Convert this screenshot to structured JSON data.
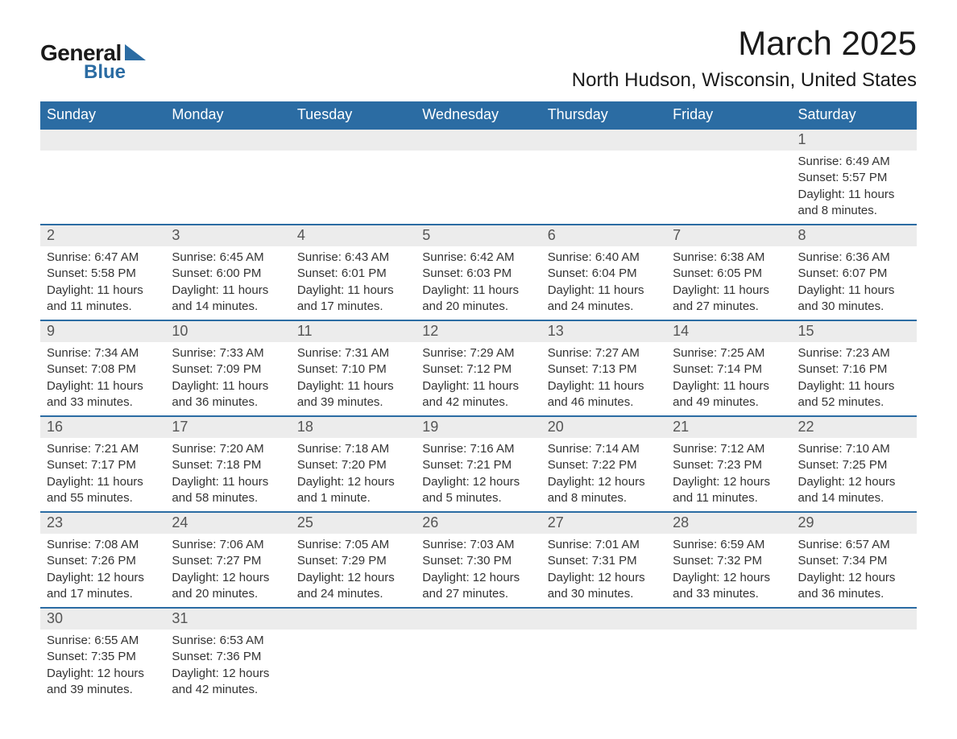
{
  "logo": {
    "text_general": "General",
    "text_blue": "Blue",
    "triangle_color": "#2b6ca3"
  },
  "header": {
    "month_title": "March 2025",
    "location": "North Hudson, Wisconsin, United States"
  },
  "colors": {
    "header_bg": "#2b6ca3",
    "header_text": "#ffffff",
    "daynum_bg": "#ececec",
    "daynum_text": "#555555",
    "body_text": "#333333",
    "row_border": "#2b6ca3",
    "page_bg": "#ffffff"
  },
  "typography": {
    "month_title_fontsize": 42,
    "location_fontsize": 24,
    "dayheader_fontsize": 18,
    "daynum_fontsize": 18,
    "body_fontsize": 15
  },
  "day_headers": [
    "Sunday",
    "Monday",
    "Tuesday",
    "Wednesday",
    "Thursday",
    "Friday",
    "Saturday"
  ],
  "weeks": [
    [
      {
        "num": "",
        "sunrise": "",
        "sunset": "",
        "daylight": ""
      },
      {
        "num": "",
        "sunrise": "",
        "sunset": "",
        "daylight": ""
      },
      {
        "num": "",
        "sunrise": "",
        "sunset": "",
        "daylight": ""
      },
      {
        "num": "",
        "sunrise": "",
        "sunset": "",
        "daylight": ""
      },
      {
        "num": "",
        "sunrise": "",
        "sunset": "",
        "daylight": ""
      },
      {
        "num": "",
        "sunrise": "",
        "sunset": "",
        "daylight": ""
      },
      {
        "num": "1",
        "sunrise": "Sunrise: 6:49 AM",
        "sunset": "Sunset: 5:57 PM",
        "daylight": "Daylight: 11 hours and 8 minutes."
      }
    ],
    [
      {
        "num": "2",
        "sunrise": "Sunrise: 6:47 AM",
        "sunset": "Sunset: 5:58 PM",
        "daylight": "Daylight: 11 hours and 11 minutes."
      },
      {
        "num": "3",
        "sunrise": "Sunrise: 6:45 AM",
        "sunset": "Sunset: 6:00 PM",
        "daylight": "Daylight: 11 hours and 14 minutes."
      },
      {
        "num": "4",
        "sunrise": "Sunrise: 6:43 AM",
        "sunset": "Sunset: 6:01 PM",
        "daylight": "Daylight: 11 hours and 17 minutes."
      },
      {
        "num": "5",
        "sunrise": "Sunrise: 6:42 AM",
        "sunset": "Sunset: 6:03 PM",
        "daylight": "Daylight: 11 hours and 20 minutes."
      },
      {
        "num": "6",
        "sunrise": "Sunrise: 6:40 AM",
        "sunset": "Sunset: 6:04 PM",
        "daylight": "Daylight: 11 hours and 24 minutes."
      },
      {
        "num": "7",
        "sunrise": "Sunrise: 6:38 AM",
        "sunset": "Sunset: 6:05 PM",
        "daylight": "Daylight: 11 hours and 27 minutes."
      },
      {
        "num": "8",
        "sunrise": "Sunrise: 6:36 AM",
        "sunset": "Sunset: 6:07 PM",
        "daylight": "Daylight: 11 hours and 30 minutes."
      }
    ],
    [
      {
        "num": "9",
        "sunrise": "Sunrise: 7:34 AM",
        "sunset": "Sunset: 7:08 PM",
        "daylight": "Daylight: 11 hours and 33 minutes."
      },
      {
        "num": "10",
        "sunrise": "Sunrise: 7:33 AM",
        "sunset": "Sunset: 7:09 PM",
        "daylight": "Daylight: 11 hours and 36 minutes."
      },
      {
        "num": "11",
        "sunrise": "Sunrise: 7:31 AM",
        "sunset": "Sunset: 7:10 PM",
        "daylight": "Daylight: 11 hours and 39 minutes."
      },
      {
        "num": "12",
        "sunrise": "Sunrise: 7:29 AM",
        "sunset": "Sunset: 7:12 PM",
        "daylight": "Daylight: 11 hours and 42 minutes."
      },
      {
        "num": "13",
        "sunrise": "Sunrise: 7:27 AM",
        "sunset": "Sunset: 7:13 PM",
        "daylight": "Daylight: 11 hours and 46 minutes."
      },
      {
        "num": "14",
        "sunrise": "Sunrise: 7:25 AM",
        "sunset": "Sunset: 7:14 PM",
        "daylight": "Daylight: 11 hours and 49 minutes."
      },
      {
        "num": "15",
        "sunrise": "Sunrise: 7:23 AM",
        "sunset": "Sunset: 7:16 PM",
        "daylight": "Daylight: 11 hours and 52 minutes."
      }
    ],
    [
      {
        "num": "16",
        "sunrise": "Sunrise: 7:21 AM",
        "sunset": "Sunset: 7:17 PM",
        "daylight": "Daylight: 11 hours and 55 minutes."
      },
      {
        "num": "17",
        "sunrise": "Sunrise: 7:20 AM",
        "sunset": "Sunset: 7:18 PM",
        "daylight": "Daylight: 11 hours and 58 minutes."
      },
      {
        "num": "18",
        "sunrise": "Sunrise: 7:18 AM",
        "sunset": "Sunset: 7:20 PM",
        "daylight": "Daylight: 12 hours and 1 minute."
      },
      {
        "num": "19",
        "sunrise": "Sunrise: 7:16 AM",
        "sunset": "Sunset: 7:21 PM",
        "daylight": "Daylight: 12 hours and 5 minutes."
      },
      {
        "num": "20",
        "sunrise": "Sunrise: 7:14 AM",
        "sunset": "Sunset: 7:22 PM",
        "daylight": "Daylight: 12 hours and 8 minutes."
      },
      {
        "num": "21",
        "sunrise": "Sunrise: 7:12 AM",
        "sunset": "Sunset: 7:23 PM",
        "daylight": "Daylight: 12 hours and 11 minutes."
      },
      {
        "num": "22",
        "sunrise": "Sunrise: 7:10 AM",
        "sunset": "Sunset: 7:25 PM",
        "daylight": "Daylight: 12 hours and 14 minutes."
      }
    ],
    [
      {
        "num": "23",
        "sunrise": "Sunrise: 7:08 AM",
        "sunset": "Sunset: 7:26 PM",
        "daylight": "Daylight: 12 hours and 17 minutes."
      },
      {
        "num": "24",
        "sunrise": "Sunrise: 7:06 AM",
        "sunset": "Sunset: 7:27 PM",
        "daylight": "Daylight: 12 hours and 20 minutes."
      },
      {
        "num": "25",
        "sunrise": "Sunrise: 7:05 AM",
        "sunset": "Sunset: 7:29 PM",
        "daylight": "Daylight: 12 hours and 24 minutes."
      },
      {
        "num": "26",
        "sunrise": "Sunrise: 7:03 AM",
        "sunset": "Sunset: 7:30 PM",
        "daylight": "Daylight: 12 hours and 27 minutes."
      },
      {
        "num": "27",
        "sunrise": "Sunrise: 7:01 AM",
        "sunset": "Sunset: 7:31 PM",
        "daylight": "Daylight: 12 hours and 30 minutes."
      },
      {
        "num": "28",
        "sunrise": "Sunrise: 6:59 AM",
        "sunset": "Sunset: 7:32 PM",
        "daylight": "Daylight: 12 hours and 33 minutes."
      },
      {
        "num": "29",
        "sunrise": "Sunrise: 6:57 AM",
        "sunset": "Sunset: 7:34 PM",
        "daylight": "Daylight: 12 hours and 36 minutes."
      }
    ],
    [
      {
        "num": "30",
        "sunrise": "Sunrise: 6:55 AM",
        "sunset": "Sunset: 7:35 PM",
        "daylight": "Daylight: 12 hours and 39 minutes."
      },
      {
        "num": "31",
        "sunrise": "Sunrise: 6:53 AM",
        "sunset": "Sunset: 7:36 PM",
        "daylight": "Daylight: 12 hours and 42 minutes."
      },
      {
        "num": "",
        "sunrise": "",
        "sunset": "",
        "daylight": ""
      },
      {
        "num": "",
        "sunrise": "",
        "sunset": "",
        "daylight": ""
      },
      {
        "num": "",
        "sunrise": "",
        "sunset": "",
        "daylight": ""
      },
      {
        "num": "",
        "sunrise": "",
        "sunset": "",
        "daylight": ""
      },
      {
        "num": "",
        "sunrise": "",
        "sunset": "",
        "daylight": ""
      }
    ]
  ]
}
